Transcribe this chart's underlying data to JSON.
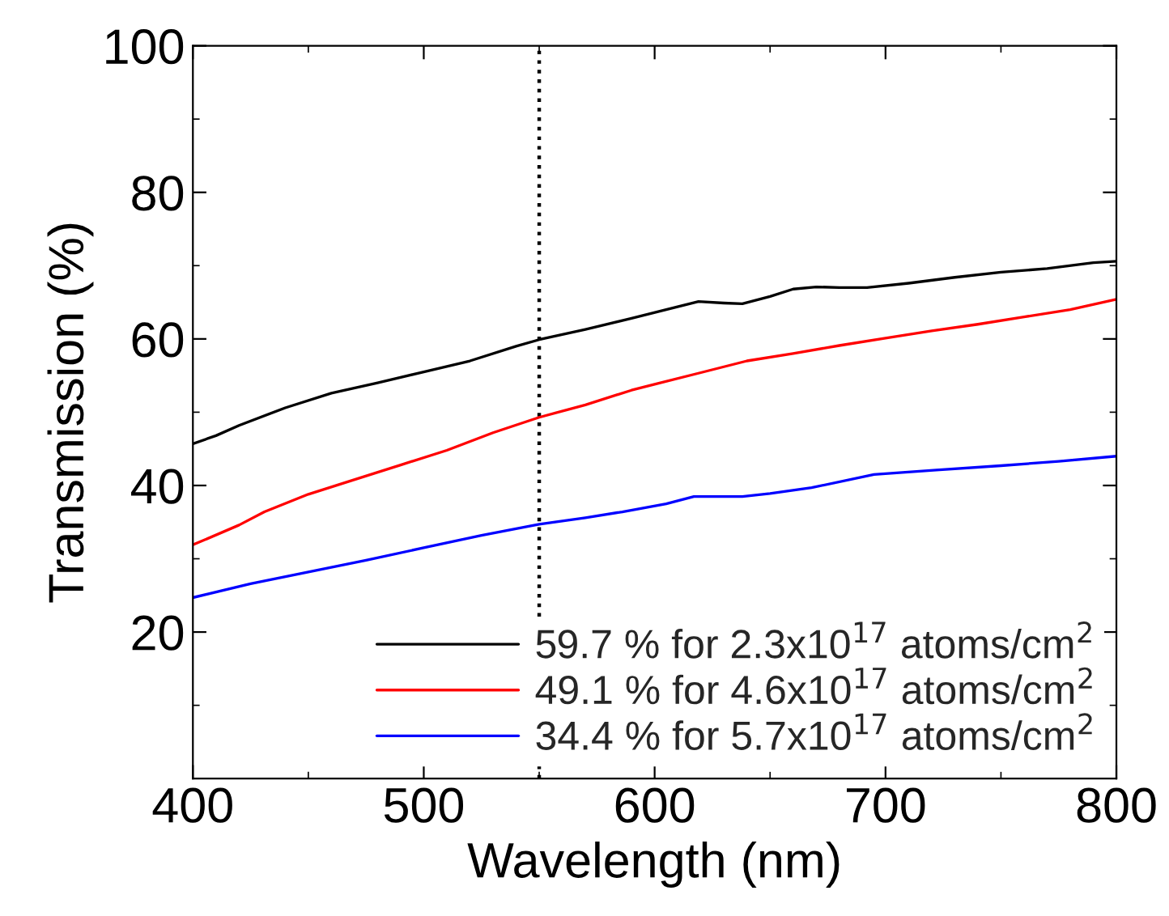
{
  "chart_data": {
    "type": "line",
    "xlabel": "Wavelength (nm)",
    "ylabel": "Transmission (%)",
    "xlim": [
      400,
      800
    ],
    "xticks": [
      400,
      500,
      600,
      700,
      800
    ],
    "ylim": [
      0,
      100
    ],
    "yticks": [
      20,
      40,
      60,
      80,
      100
    ],
    "legend": "bottom right",
    "grid": false,
    "marker": "none",
    "line_style": "solid",
    "ref_lines": [
      {
        "axis": "x",
        "value": 550,
        "color": "#000000",
        "line_style": "dotted"
      }
    ],
    "series": [
      {
        "name": "59.7 % for 2.3x10$^{17}$ atoms/cm$^{2}$",
        "color": "#000000",
        "x": [
          400,
          410,
          420,
          440,
          460,
          480,
          500,
          520,
          540,
          550,
          570,
          590,
          605,
          619,
          630,
          638,
          650,
          660,
          670,
          680,
          692,
          710,
          730,
          750,
          770,
          790,
          800
        ],
        "values": [
          45.7,
          46.8,
          48.2,
          50.6,
          52.6,
          54.0,
          55.5,
          57.0,
          59.0,
          59.9,
          61.3,
          62.8,
          64.0,
          65.1,
          64.9,
          64.8,
          65.8,
          66.8,
          67.1,
          67.0,
          67.0,
          67.6,
          68.4,
          69.1,
          69.6,
          70.4,
          70.6
        ]
      },
      {
        "name": "49.1 % for 4.6x10$^{17}$ atoms/cm$^{2}$",
        "color": "#ff0000",
        "x": [
          400,
          420,
          431,
          450,
          469,
          490,
          510,
          530,
          550,
          570,
          590,
          600,
          620,
          640,
          660,
          680,
          700,
          720,
          740,
          760,
          780,
          800
        ],
        "values": [
          31.9,
          34.6,
          36.4,
          38.8,
          40.7,
          42.8,
          44.8,
          47.2,
          49.3,
          51.0,
          53.0,
          53.8,
          55.4,
          57.0,
          58.0,
          59.1,
          60.1,
          61.1,
          62.0,
          63.0,
          64.0,
          65.4
        ]
      },
      {
        "name": "34.4 % for 5.7x10$^{17}$ atoms/cm$^{2}$",
        "color": "#0000ff",
        "x": [
          400,
          425,
          450,
          475,
          500,
          525,
          550,
          570,
          586,
          605,
          617,
          638,
          650,
          668,
          695,
          722,
          750,
          775,
          800
        ],
        "values": [
          24.7,
          26.6,
          28.2,
          29.8,
          31.5,
          33.2,
          34.7,
          35.6,
          36.4,
          37.5,
          38.5,
          38.5,
          38.9,
          39.7,
          41.5,
          42.1,
          42.7,
          43.3,
          44.0
        ]
      }
    ]
  }
}
